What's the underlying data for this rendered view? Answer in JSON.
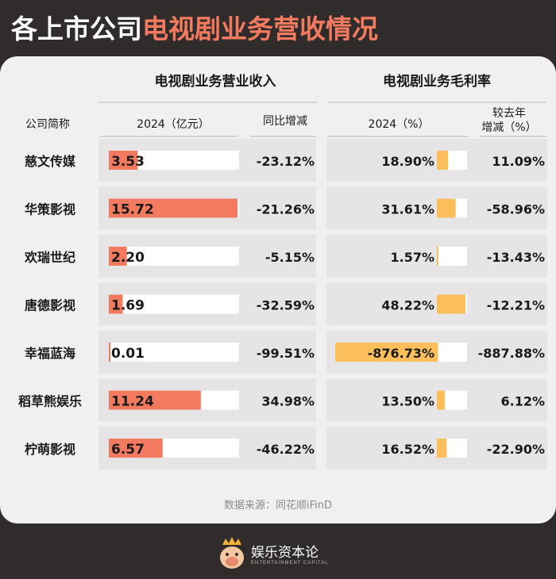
{
  "title": {
    "white": "各上市公司",
    "orange": "电视剧业务营收情况"
  },
  "header": {
    "revenue_group": "电视剧业务营业收入",
    "margin_group": "电视剧业务毛利率",
    "company_col": "公司简称",
    "revenue_col": "2024（亿元）",
    "revenue_change_col": "同比增减",
    "margin_col": "2024（%）",
    "margin_change_col_line1": "较去年",
    "margin_change_col_line2": "增减（%）"
  },
  "chart_data": {
    "type": "table",
    "rows": [
      {
        "company": "慈文传媒",
        "revenue": 3.53,
        "revenue_label": "3.53",
        "revenue_change": "-23.12%",
        "margin": 18.9,
        "margin_label": "18.90%",
        "margin_change": "11.09%"
      },
      {
        "company": "华策影视",
        "revenue": 15.72,
        "revenue_label": "15.72",
        "revenue_change": "-21.26%",
        "margin": 31.61,
        "margin_label": "31.61%",
        "margin_change": "-58.96%"
      },
      {
        "company": "欢瑞世纪",
        "revenue": 2.2,
        "revenue_label": "2.20",
        "revenue_change": "-5.15%",
        "margin": 1.57,
        "margin_label": "1.57%",
        "margin_change": "-13.43%"
      },
      {
        "company": "唐德影视",
        "revenue": 1.69,
        "revenue_label": "1.69",
        "revenue_change": "-32.59%",
        "margin": 48.22,
        "margin_label": "48.22%",
        "margin_change": "-12.21%"
      },
      {
        "company": "幸福蓝海",
        "revenue": 0.01,
        "revenue_label": "0.01",
        "revenue_change": "-99.51%",
        "margin": -876.73,
        "margin_label": "-876.73%",
        "margin_change": "-887.88%"
      },
      {
        "company": "稻草熊娱乐",
        "revenue": 11.24,
        "revenue_label": "11.24",
        "revenue_change": "34.98%",
        "margin": 13.5,
        "margin_label": "13.50%",
        "margin_change": "6.12%"
      },
      {
        "company": "柠萌影视",
        "revenue": 6.57,
        "revenue_label": "6.57",
        "revenue_change": "-46.22%",
        "margin": 16.52,
        "margin_label": "16.52%",
        "margin_change": "-22.90%"
      }
    ]
  },
  "colors": {
    "revenue_bar": "#f47a5f",
    "margin_bar": "#fbbe5a",
    "row_band": "#e6e4e4",
    "bar_track": "#ffffff",
    "text": "#1a1a1a"
  },
  "source": "数据来源：同花顺iFinD",
  "footer": {
    "brand_cn": "娱乐资本论",
    "brand_en": "ENTERTAINMENT CAPITAL"
  }
}
